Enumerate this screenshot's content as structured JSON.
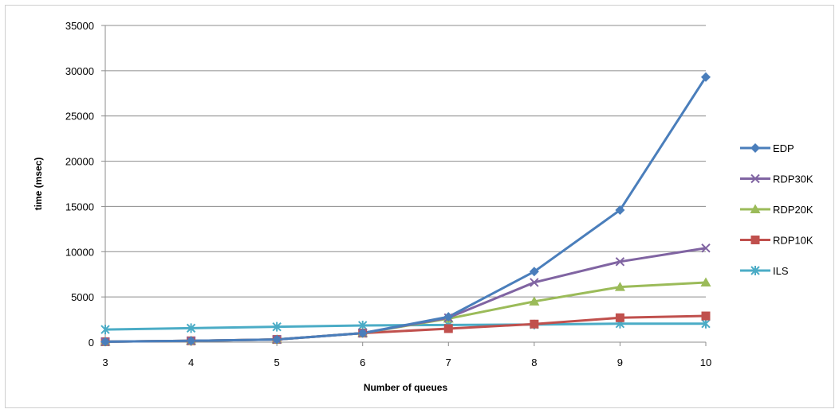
{
  "chart_data": {
    "type": "line",
    "title": "",
    "xlabel": "Number of queues",
    "ylabel": "time (msec)",
    "x": [
      3,
      4,
      5,
      6,
      7,
      8,
      9,
      10
    ],
    "ylim": [
      0,
      35000
    ],
    "yticks": [
      0,
      5000,
      10000,
      15000,
      20000,
      25000,
      30000,
      35000
    ],
    "grid": "horizontal",
    "legend_position": "right",
    "series": [
      {
        "name": "EDP",
        "color": "#4a7ebb",
        "marker": "diamond",
        "values": [
          50,
          150,
          300,
          1000,
          2800,
          7800,
          14600,
          29300
        ]
      },
      {
        "name": "RDP30K",
        "color": "#8064a2",
        "marker": "x",
        "values": [
          50,
          150,
          300,
          1000,
          2700,
          6600,
          8900,
          10400
        ]
      },
      {
        "name": "RDP20K",
        "color": "#9bbb59",
        "marker": "triangle",
        "values": [
          50,
          150,
          300,
          1000,
          2600,
          4500,
          6100,
          6600
        ]
      },
      {
        "name": "RDP10K",
        "color": "#c0504d",
        "marker": "square",
        "values": [
          50,
          150,
          300,
          1000,
          1500,
          2000,
          2700,
          2900
        ]
      },
      {
        "name": "ILS",
        "color": "#4bacc6",
        "marker": "star",
        "values": [
          1400,
          1550,
          1700,
          1850,
          1900,
          1950,
          2050,
          2050
        ]
      }
    ]
  }
}
